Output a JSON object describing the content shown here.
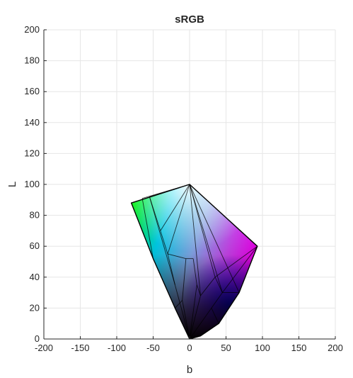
{
  "chart_data": {
    "type": "area",
    "title": "sRGB",
    "xlabel": "b",
    "ylabel": "L",
    "xlim": [
      -200,
      200
    ],
    "ylim": [
      0,
      200
    ],
    "xticks": [
      -200,
      -150,
      -100,
      -50,
      0,
      50,
      100,
      150,
      200
    ],
    "yticks": [
      0,
      20,
      40,
      60,
      80,
      100,
      120,
      140,
      160,
      180,
      200
    ],
    "grid": true,
    "series": [
      {
        "outline": [
          [
            0,
            100
          ],
          [
            93,
            60
          ],
          [
            68,
            30
          ],
          [
            40,
            10
          ],
          [
            15,
            2
          ],
          [
            0,
            0
          ],
          [
            -20,
            20
          ],
          [
            -50,
            52
          ],
          [
            -80,
            88
          ]
        ],
        "inner_vertices": [
          [
            -65,
            91
          ],
          [
            -55,
            92
          ],
          [
            -40,
            70
          ],
          [
            -30,
            55
          ],
          [
            -20,
            35
          ],
          [
            -5,
            52
          ],
          [
            5,
            52
          ],
          [
            10,
            35
          ],
          [
            15,
            28
          ],
          [
            35,
            40
          ],
          [
            45,
            30
          ],
          [
            30,
            20
          ],
          [
            -10,
            25
          ]
        ],
        "vertex_colors": {
          "white": [
            0,
            100
          ],
          "magenta": [
            93,
            60
          ],
          "blue": [
            68,
            30
          ],
          "green": [
            -80,
            88
          ],
          "cyan": [
            -55,
            92
          ],
          "black": [
            0,
            0
          ]
        }
      }
    ],
    "colors": {
      "white": "#ffffff",
      "magenta": "#ff00ff",
      "blue": "#0000ff",
      "green": "#00ff00",
      "cyan": "#00e0ff",
      "black": "#000000",
      "mid_dark": "#1a3a5a",
      "grid": "#e6e6e6",
      "axis": "#262626"
    }
  }
}
